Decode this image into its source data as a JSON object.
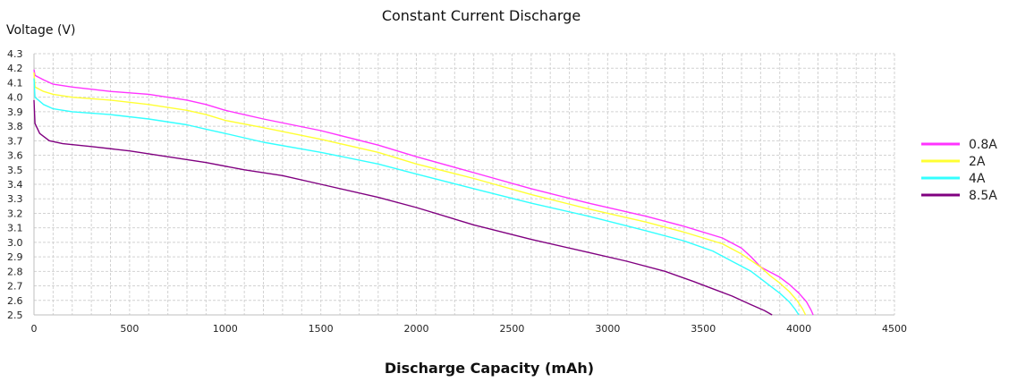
{
  "chart_data": {
    "type": "line",
    "title": "Constant Current Discharge",
    "xlabel": "Discharge Capacity (mAh)",
    "ylabel": "Voltage (V)",
    "xlim": [
      0,
      4500
    ],
    "ylim": [
      2.5,
      4.3
    ],
    "xticks": [
      0,
      500,
      1000,
      1500,
      2000,
      2500,
      3000,
      3500,
      4000,
      4500
    ],
    "yticks": [
      2.5,
      2.6,
      2.7,
      2.8,
      2.9,
      3.0,
      3.1,
      3.2,
      3.3,
      3.4,
      3.5,
      3.6,
      3.7,
      3.8,
      3.9,
      4.0,
      4.1,
      4.2,
      4.3
    ],
    "grid": true,
    "legend_position": "right",
    "series": [
      {
        "name": "0.8A",
        "color": "#ff33ff",
        "points": [
          [
            0,
            4.19
          ],
          [
            5,
            4.15
          ],
          [
            50,
            4.12
          ],
          [
            100,
            4.09
          ],
          [
            200,
            4.07
          ],
          [
            400,
            4.04
          ],
          [
            600,
            4.02
          ],
          [
            800,
            3.98
          ],
          [
            900,
            3.95
          ],
          [
            1000,
            3.91
          ],
          [
            1200,
            3.85
          ],
          [
            1500,
            3.77
          ],
          [
            1800,
            3.67
          ],
          [
            2000,
            3.59
          ],
          [
            2300,
            3.48
          ],
          [
            2600,
            3.37
          ],
          [
            2900,
            3.27
          ],
          [
            3200,
            3.18
          ],
          [
            3400,
            3.11
          ],
          [
            3600,
            3.03
          ],
          [
            3700,
            2.96
          ],
          [
            3750,
            2.9
          ],
          [
            3800,
            2.83
          ],
          [
            3900,
            2.76
          ],
          [
            3950,
            2.71
          ],
          [
            4000,
            2.65
          ],
          [
            4040,
            2.59
          ],
          [
            4065,
            2.53
          ],
          [
            4075,
            2.5
          ]
        ]
      },
      {
        "name": "2A",
        "color": "#ffff33",
        "points": [
          [
            0,
            4.17
          ],
          [
            5,
            4.07
          ],
          [
            50,
            4.04
          ],
          [
            100,
            4.02
          ],
          [
            200,
            4.0
          ],
          [
            400,
            3.98
          ],
          [
            600,
            3.95
          ],
          [
            800,
            3.91
          ],
          [
            900,
            3.88
          ],
          [
            1000,
            3.84
          ],
          [
            1200,
            3.79
          ],
          [
            1500,
            3.71
          ],
          [
            1800,
            3.62
          ],
          [
            2000,
            3.54
          ],
          [
            2300,
            3.44
          ],
          [
            2600,
            3.33
          ],
          [
            2900,
            3.23
          ],
          [
            3200,
            3.14
          ],
          [
            3400,
            3.07
          ],
          [
            3600,
            2.99
          ],
          [
            3700,
            2.92
          ],
          [
            3800,
            2.83
          ],
          [
            3850,
            2.77
          ],
          [
            3900,
            2.72
          ],
          [
            3950,
            2.66
          ],
          [
            3990,
            2.6
          ],
          [
            4020,
            2.54
          ],
          [
            4035,
            2.5
          ]
        ]
      },
      {
        "name": "4A",
        "color": "#33ffff",
        "points": [
          [
            0,
            4.13
          ],
          [
            5,
            4.0
          ],
          [
            50,
            3.95
          ],
          [
            100,
            3.92
          ],
          [
            200,
            3.9
          ],
          [
            400,
            3.88
          ],
          [
            600,
            3.85
          ],
          [
            800,
            3.81
          ],
          [
            900,
            3.78
          ],
          [
            1000,
            3.75
          ],
          [
            1200,
            3.69
          ],
          [
            1500,
            3.62
          ],
          [
            1800,
            3.54
          ],
          [
            2000,
            3.47
          ],
          [
            2300,
            3.37
          ],
          [
            2600,
            3.27
          ],
          [
            2900,
            3.18
          ],
          [
            3200,
            3.08
          ],
          [
            3400,
            3.01
          ],
          [
            3550,
            2.94
          ],
          [
            3650,
            2.87
          ],
          [
            3750,
            2.8
          ],
          [
            3800,
            2.75
          ],
          [
            3850,
            2.7
          ],
          [
            3900,
            2.65
          ],
          [
            3950,
            2.59
          ],
          [
            3980,
            2.54
          ],
          [
            4000,
            2.5
          ]
        ]
      },
      {
        "name": "8.5A",
        "color": "#800080",
        "points": [
          [
            0,
            3.98
          ],
          [
            5,
            3.82
          ],
          [
            30,
            3.75
          ],
          [
            80,
            3.7
          ],
          [
            150,
            3.68
          ],
          [
            300,
            3.66
          ],
          [
            500,
            3.63
          ],
          [
            700,
            3.59
          ],
          [
            900,
            3.55
          ],
          [
            1100,
            3.5
          ],
          [
            1300,
            3.46
          ],
          [
            1500,
            3.4
          ],
          [
            1800,
            3.31
          ],
          [
            2000,
            3.24
          ],
          [
            2300,
            3.12
          ],
          [
            2600,
            3.02
          ],
          [
            2900,
            2.93
          ],
          [
            3100,
            2.87
          ],
          [
            3300,
            2.8
          ],
          [
            3450,
            2.73
          ],
          [
            3550,
            2.68
          ],
          [
            3650,
            2.63
          ],
          [
            3750,
            2.57
          ],
          [
            3820,
            2.53
          ],
          [
            3860,
            2.5
          ]
        ]
      }
    ]
  }
}
